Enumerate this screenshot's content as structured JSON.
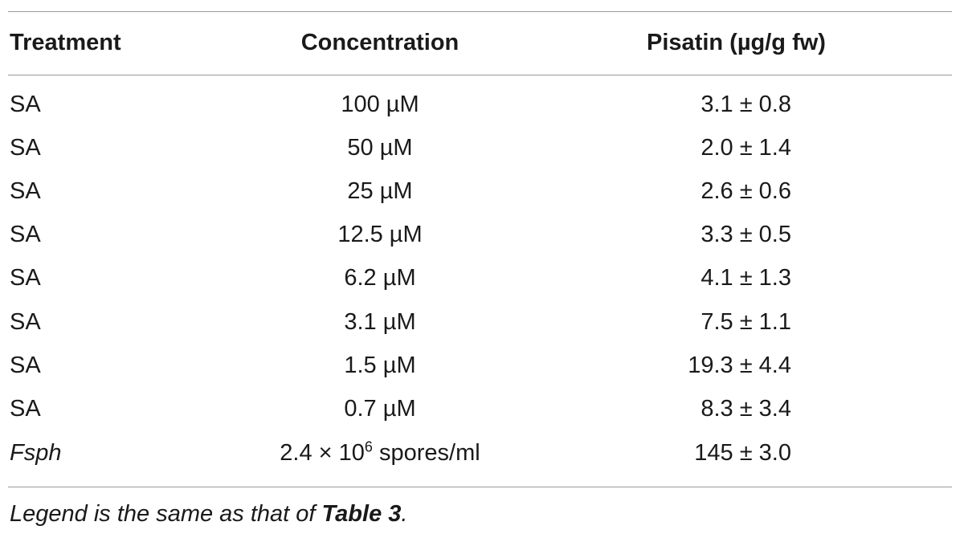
{
  "table": {
    "headers": {
      "treatment": "Treatment",
      "concentration": "Concentration",
      "pisatin": "Pisatin (µg/g fw)"
    },
    "rows": [
      {
        "treatment": "SA",
        "concentration": "100 µM",
        "pisatin": "3.1 ± 0.8"
      },
      {
        "treatment": "SA",
        "concentration": "50 µM",
        "pisatin": "2.0 ± 1.4"
      },
      {
        "treatment": "SA",
        "concentration": "25 µM",
        "pisatin": "2.6 ± 0.6"
      },
      {
        "treatment": "SA",
        "concentration": "12.5 µM",
        "pisatin": "3.3 ± 0.5"
      },
      {
        "treatment": "SA",
        "concentration": "6.2 µM",
        "pisatin": "4.1 ± 1.3"
      },
      {
        "treatment": "SA",
        "concentration": "3.1 µM",
        "pisatin": "7.5 ± 1.1"
      },
      {
        "treatment": "SA",
        "concentration": "1.5 µM",
        "pisatin": "19.3 ± 4.4"
      },
      {
        "treatment": "SA",
        "concentration": "0.7 µM",
        "pisatin": "8.3 ± 3.4"
      },
      {
        "treatment": "Fsph",
        "concentration_prefix": "2.4 × 10",
        "concentration_exp": "6",
        "concentration_suffix": " spores/ml",
        "pisatin": "145 ± 3.0"
      }
    ]
  },
  "legend": {
    "prefix": "Legend is the same as that of ",
    "ref": "Table 3",
    "suffix": "."
  }
}
